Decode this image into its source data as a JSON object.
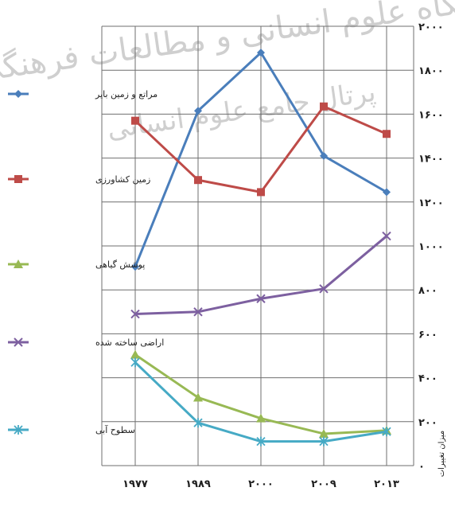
{
  "watermark": {
    "line1": "پژوهشگاه علوم انسانی و مطالعات فرهنگی",
    "line2": "پرتال جامع علوم انسانی"
  },
  "chart_data": {
    "type": "line",
    "title": "",
    "xlabel": "",
    "ylabel": "میزان تغییرات",
    "x": [
      "۱۹۷۷",
      "۱۹۸۹",
      "۲۰۰۰",
      "۲۰۰۹",
      "۲۰۱۳"
    ],
    "ylim": [
      0,
      2000
    ],
    "yticks": [
      0,
      200,
      400,
      600,
      800,
      1000,
      1200,
      1400,
      1600,
      1800,
      2000
    ],
    "ytick_labels": [
      "۰",
      "۲۰۰",
      "۴۰۰",
      "۶۰۰",
      "۸۰۰",
      "۱۰۰۰",
      "۱۲۰۰",
      "۱۴۰۰",
      "۱۶۰۰",
      "۱۸۰۰",
      "۲۰۰۰"
    ],
    "grid": true,
    "legend_placement": "left",
    "series": [
      {
        "name": "مراتع و زمین بایر",
        "color": "#4a7ebb",
        "marker": "diamond",
        "values": [
          905,
          1615,
          1880,
          1410,
          1245
        ]
      },
      {
        "name": "زمین کشاورزی",
        "color": "#be4b48",
        "marker": "square",
        "values": [
          1570,
          1300,
          1245,
          1635,
          1510
        ]
      },
      {
        "name": "پوشش گیاهی",
        "color": "#98b954",
        "marker": "triangle",
        "values": [
          505,
          310,
          215,
          145,
          160
        ]
      },
      {
        "name": "اراضی ساخته شده",
        "color": "#7d60a0",
        "marker": "x",
        "values": [
          690,
          700,
          760,
          805,
          1045
        ]
      },
      {
        "name": "سطوح آبی",
        "color": "#46aac5",
        "marker": "star",
        "values": [
          470,
          195,
          110,
          110,
          155
        ]
      }
    ]
  }
}
